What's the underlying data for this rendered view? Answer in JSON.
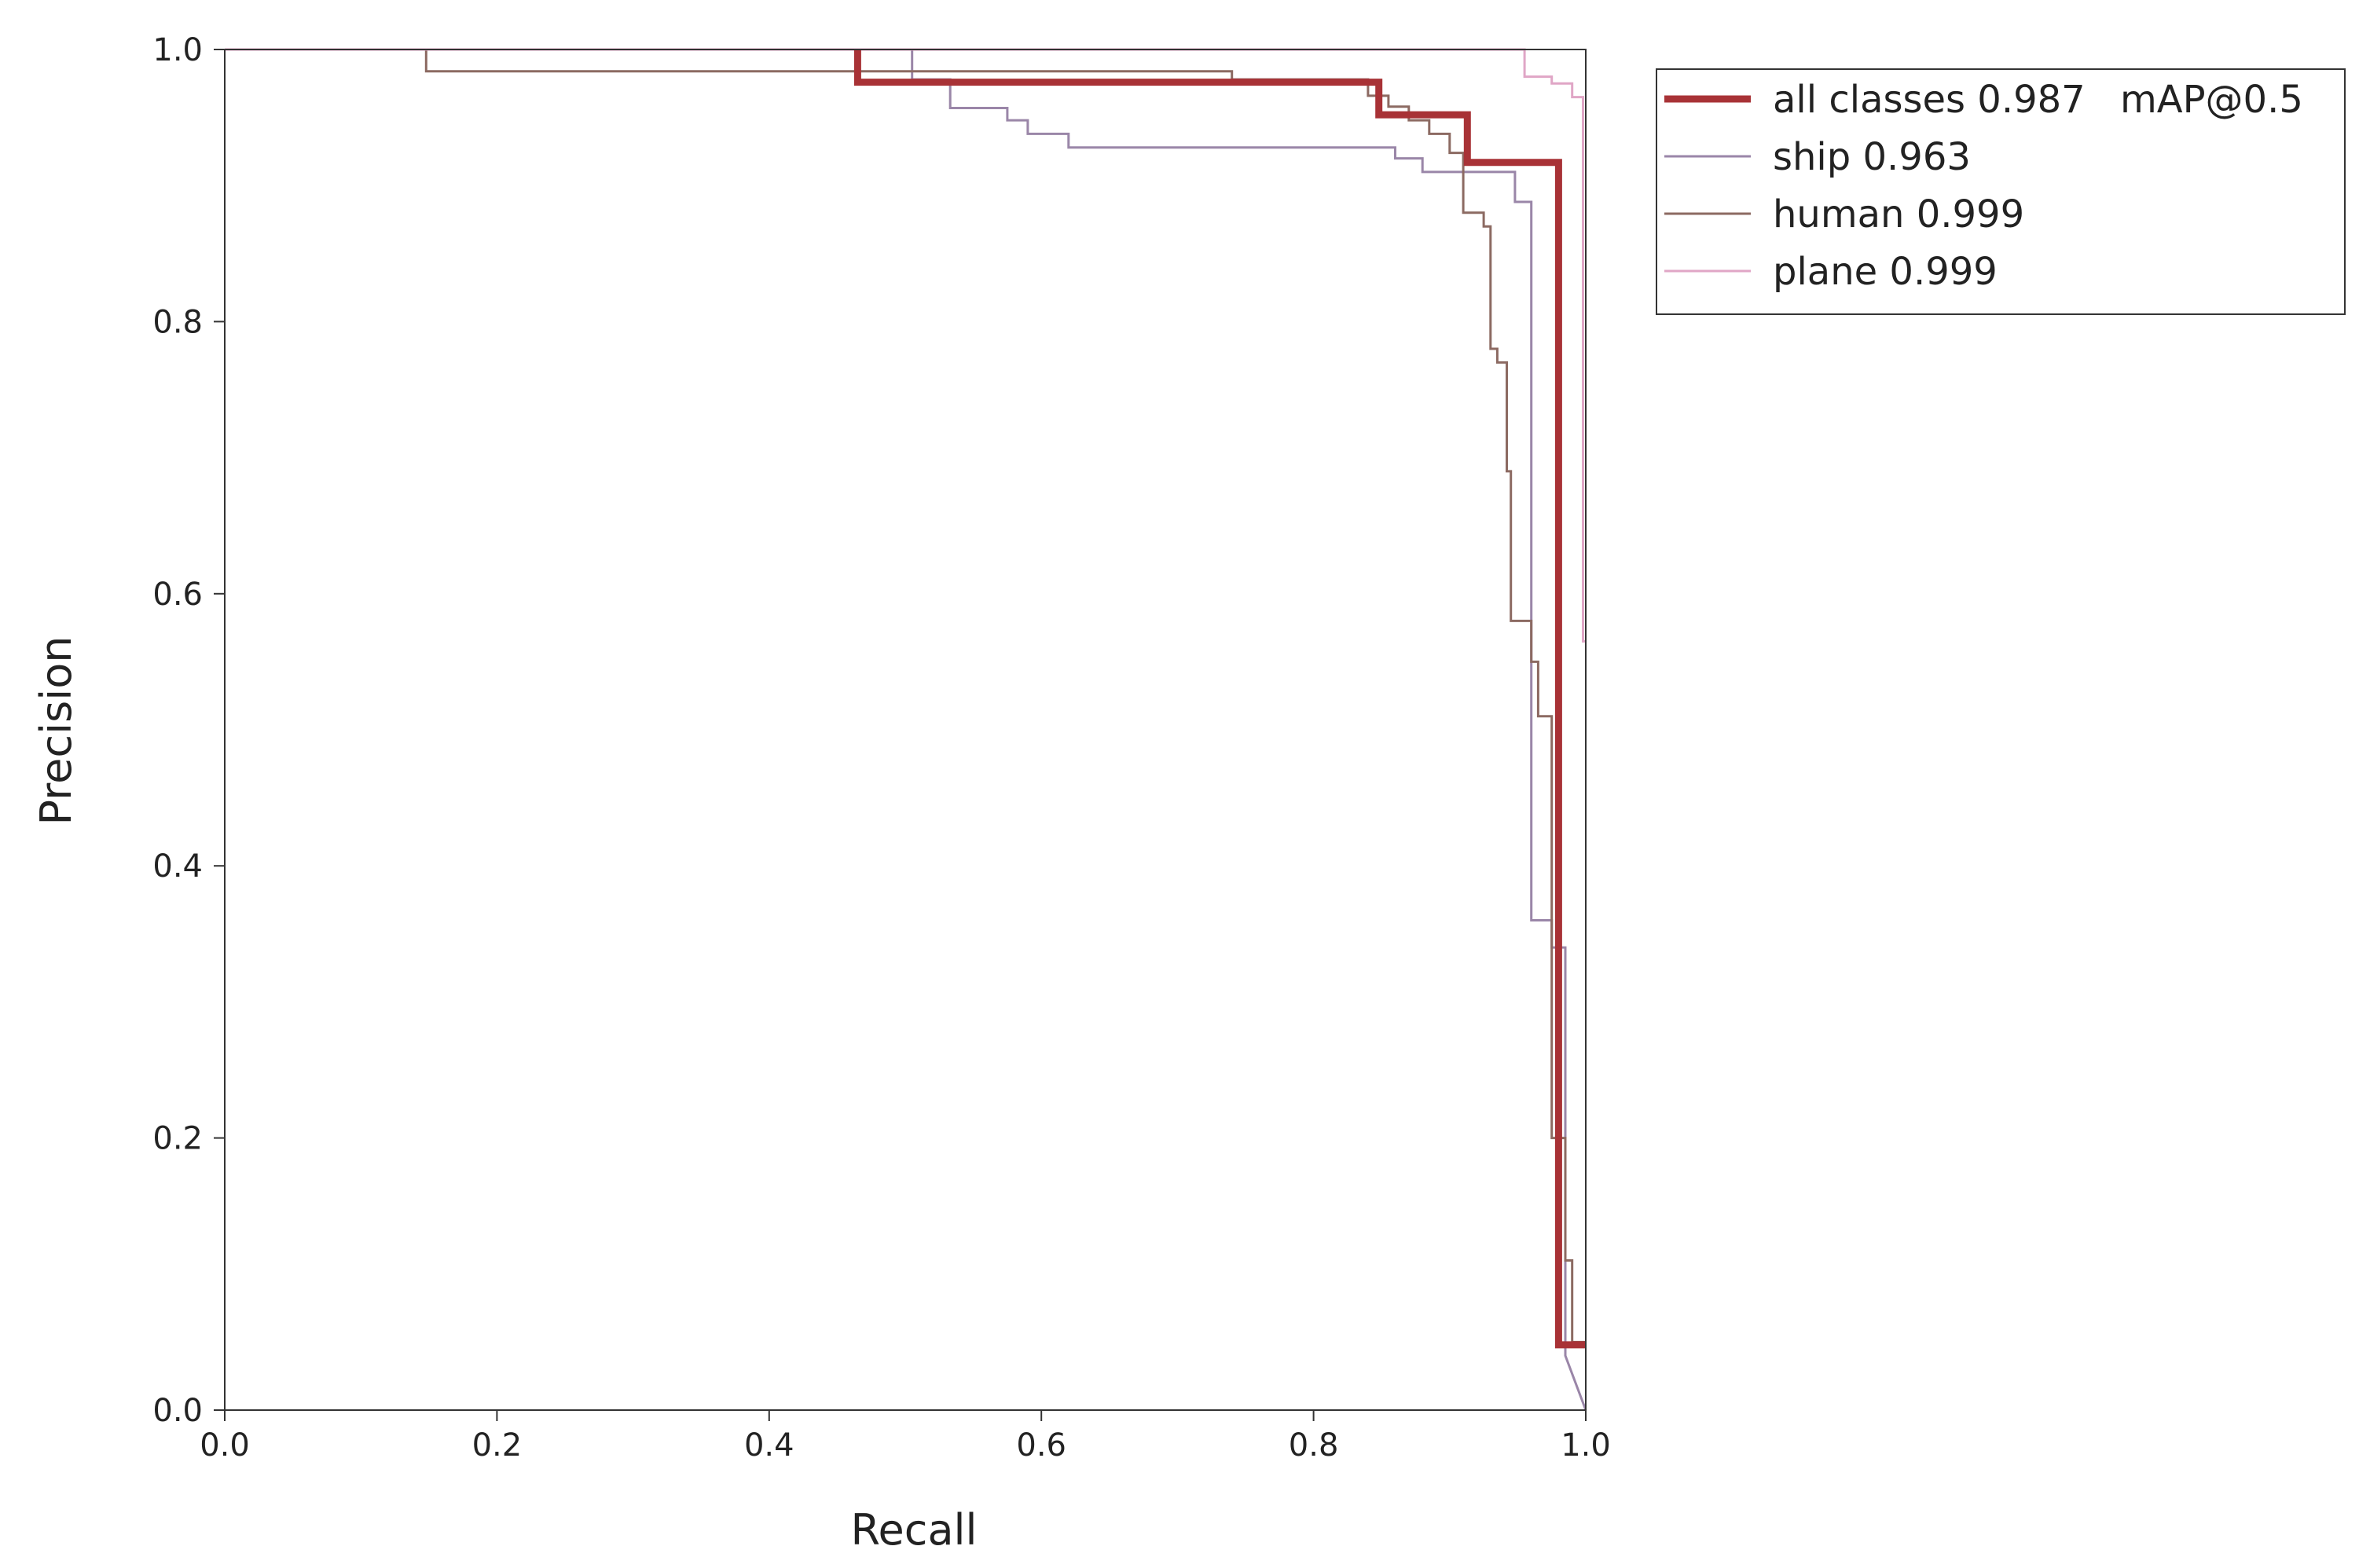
{
  "chart_data": {
    "type": "line",
    "xlabel": "Recall",
    "ylabel": "Precision",
    "xlim": [
      0.0,
      1.0
    ],
    "ylim": [
      0.0,
      1.0
    ],
    "grid": false,
    "legend_position": "top-right-outside",
    "legend_note": "mAP@0.5",
    "xticks": [
      "0.0",
      "0.2",
      "0.4",
      "0.6",
      "0.8",
      "1.0"
    ],
    "yticks": [
      "0.0",
      "0.2",
      "0.4",
      "0.6",
      "0.8",
      "1.0"
    ],
    "series": [
      {
        "name": "ship",
        "label": "ship 0.963",
        "color": "#9a86a8",
        "width": 3,
        "points": [
          [
            0.0,
            1.0
          ],
          [
            0.505,
            1.0
          ],
          [
            0.505,
            0.978
          ],
          [
            0.533,
            0.978
          ],
          [
            0.533,
            0.957
          ],
          [
            0.575,
            0.957
          ],
          [
            0.575,
            0.948
          ],
          [
            0.59,
            0.948
          ],
          [
            0.59,
            0.938
          ],
          [
            0.62,
            0.938
          ],
          [
            0.62,
            0.928
          ],
          [
            0.86,
            0.928
          ],
          [
            0.86,
            0.92
          ],
          [
            0.88,
            0.92
          ],
          [
            0.88,
            0.91
          ],
          [
            0.948,
            0.91
          ],
          [
            0.948,
            0.888
          ],
          [
            0.96,
            0.888
          ],
          [
            0.96,
            0.36
          ],
          [
            0.975,
            0.36
          ],
          [
            0.975,
            0.34
          ],
          [
            0.985,
            0.34
          ],
          [
            0.985,
            0.04
          ],
          [
            1.0,
            0.0
          ]
        ]
      },
      {
        "name": "human",
        "label": "human 0.999",
        "color": "#8c6a62",
        "width": 3,
        "points": [
          [
            0.0,
            1.0
          ],
          [
            0.148,
            1.0
          ],
          [
            0.148,
            0.984
          ],
          [
            0.74,
            0.984
          ],
          [
            0.74,
            0.978
          ],
          [
            0.84,
            0.978
          ],
          [
            0.84,
            0.966
          ],
          [
            0.855,
            0.966
          ],
          [
            0.855,
            0.958
          ],
          [
            0.87,
            0.958
          ],
          [
            0.87,
            0.948
          ],
          [
            0.885,
            0.948
          ],
          [
            0.885,
            0.938
          ],
          [
            0.9,
            0.938
          ],
          [
            0.9,
            0.924
          ],
          [
            0.91,
            0.924
          ],
          [
            0.91,
            0.88
          ],
          [
            0.925,
            0.88
          ],
          [
            0.925,
            0.87
          ],
          [
            0.93,
            0.87
          ],
          [
            0.93,
            0.78
          ],
          [
            0.935,
            0.78
          ],
          [
            0.935,
            0.77
          ],
          [
            0.942,
            0.77
          ],
          [
            0.942,
            0.69
          ],
          [
            0.945,
            0.69
          ],
          [
            0.945,
            0.58
          ],
          [
            0.96,
            0.58
          ],
          [
            0.96,
            0.55
          ],
          [
            0.965,
            0.55
          ],
          [
            0.965,
            0.51
          ],
          [
            0.975,
            0.51
          ],
          [
            0.975,
            0.2
          ],
          [
            0.985,
            0.2
          ],
          [
            0.985,
            0.11
          ],
          [
            0.99,
            0.11
          ],
          [
            0.99,
            0.05
          ],
          [
            1.0,
            0.05
          ]
        ]
      },
      {
        "name": "plane",
        "label": "plane 0.999",
        "color": "#e0a6c6",
        "width": 3,
        "points": [
          [
            0.0,
            1.0
          ],
          [
            0.955,
            1.0
          ],
          [
            0.955,
            0.98
          ],
          [
            0.975,
            0.98
          ],
          [
            0.975,
            0.975
          ],
          [
            0.99,
            0.975
          ],
          [
            0.99,
            0.965
          ],
          [
            0.998,
            0.965
          ],
          [
            0.998,
            0.565
          ],
          [
            1.0,
            0.565
          ]
        ]
      },
      {
        "name": "all classes",
        "label": "all classes 0.987",
        "color": "#a83236",
        "width": 9,
        "points": [
          [
            0.465,
            1.0
          ],
          [
            0.465,
            0.976
          ],
          [
            0.848,
            0.976
          ],
          [
            0.848,
            0.952
          ],
          [
            0.913,
            0.952
          ],
          [
            0.913,
            0.917
          ],
          [
            0.98,
            0.917
          ],
          [
            0.98,
            0.048
          ],
          [
            1.0,
            0.048
          ]
        ]
      }
    ]
  }
}
